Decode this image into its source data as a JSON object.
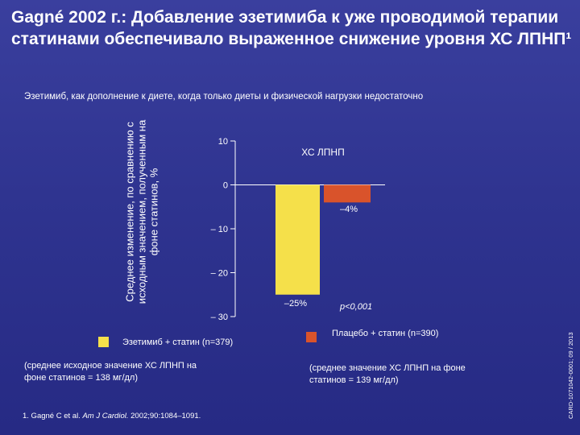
{
  "slide": {
    "title": "Gagné 2002 г.: Добавление эзетимиба к уже проводимой терапии статинами обеспечивало выраженное снижение уровня ХС ЛПНП¹",
    "subtitle": "Эзетимиб, как дополнение к диете, когда только диеты и физической нагрузки недостаточно",
    "yaxis_title": "Среднее изменение, по сравнению с исходным значением, полученным на фоне статинов, %",
    "legend_ezetimibe": "Эзетимиб + статин (n=379)",
    "legend_placebo": "Плацебо + статин (n=390)",
    "note_ezetimibe": "(среднее исходное значение ХС ЛПНП на фоне статинов = 138 мг/дл)",
    "note_placebo": "(среднее значение ХС ЛПНП на фоне статинов = 139 мг/дл)",
    "reference_prefix": "1. Gagné C et al. ",
    "reference_journal": "Am J Cardiol.",
    "reference_suffix": " 2002;90:1084–1091.",
    "doc_code": "CARD-1071042-0001; 09 / 2013"
  },
  "colors": {
    "ezetimibe": "#f5e04a",
    "placebo": "#d9532b",
    "background": "#2f3490",
    "text": "#ffffff"
  },
  "chart_data": {
    "type": "bar",
    "title": "ХС ЛПНП",
    "categories": [
      "Эзетимиб + статин (n=379)",
      "Плацебо + статин (n=390)"
    ],
    "values": [
      -25,
      -4
    ],
    "value_labels": [
      "–25%",
      "–4%"
    ],
    "ylim": [
      -30,
      10
    ],
    "yticks": [
      10,
      0,
      -10,
      -20,
      -30
    ],
    "ytick_labels": [
      "10",
      "0",
      "– 10",
      "– 20",
      "– 30"
    ],
    "annotation": "p<0,001",
    "grid": false
  }
}
